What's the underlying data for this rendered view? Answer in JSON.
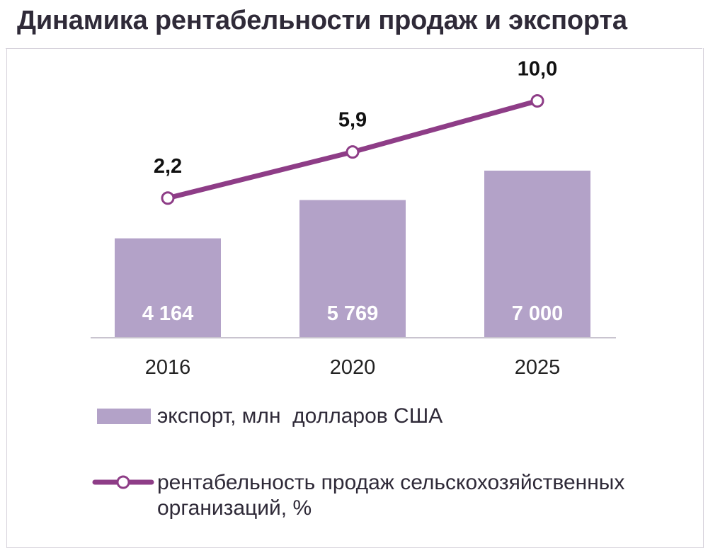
{
  "title": "Динамика рентабельности продаж и экспорта",
  "colors": {
    "bar": "#b3a2c8",
    "line": "#8e3d87",
    "bar_label": "#ffffff",
    "value_label": "#111111",
    "axis_text": "#222222"
  },
  "chart_data": {
    "type": "bar",
    "categories": [
      "2016",
      "2020",
      "2025"
    ],
    "series": [
      {
        "name": "экспорт, млн  долларов США",
        "type": "bar",
        "values": [
          4164,
          5769,
          7000
        ],
        "labels": [
          "4 164",
          "5 769",
          "7 000"
        ]
      },
      {
        "name": "рентабельность продаж сельскохозяйственных организаций, %",
        "type": "line",
        "values": [
          2.2,
          5.9,
          10.0
        ],
        "labels": [
          "2,2",
          "5,9",
          "10,0"
        ]
      }
    ],
    "legend": "bottom"
  },
  "legend": {
    "bar_label": "экспорт, млн  долларов США",
    "line_label_1": "рентабельность продаж сельскохозяйственных",
    "line_label_2": "организаций, %"
  }
}
